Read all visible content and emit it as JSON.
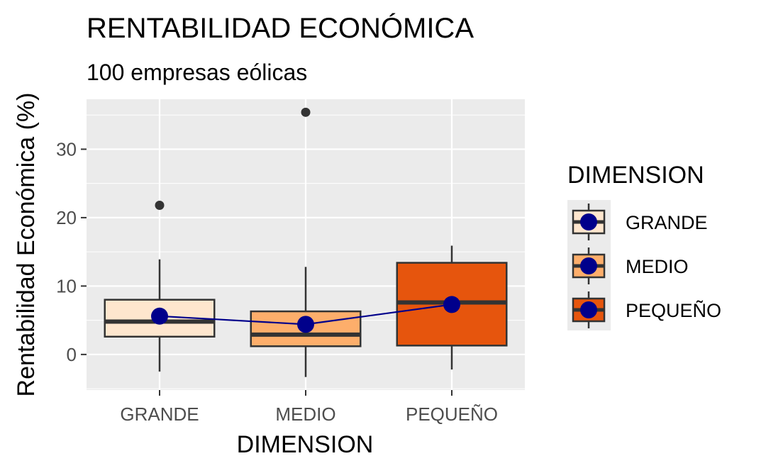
{
  "chart_data": {
    "type": "box",
    "title": "RENTABILIDAD ECONÓMICA",
    "subtitle": "100 empresas eólicas",
    "xlabel": "DIMENSION",
    "ylabel": "Rentabilidad Económica (%)",
    "ylim": [
      -5.2,
      37.3
    ],
    "yticks": [
      0,
      10,
      20,
      30
    ],
    "grid": true,
    "legend": {
      "title": "DIMENSION",
      "position": "right"
    },
    "categories": [
      "GRANDE",
      "MEDIO",
      "PEQUEÑO"
    ],
    "boxes": [
      {
        "category": "GRANDE",
        "lower_whisker": -2.5,
        "q1": 2.6,
        "median": 4.8,
        "q3": 8.0,
        "upper_whisker": 13.9,
        "outliers": [
          21.8
        ],
        "mean": 5.6,
        "fill": "#fee6ce"
      },
      {
        "category": "MEDIO",
        "lower_whisker": -3.3,
        "q1": 1.2,
        "median": 2.9,
        "q3": 6.3,
        "upper_whisker": 12.8,
        "outliers": [
          35.4
        ],
        "mean": 4.4,
        "fill": "#fdae6b"
      },
      {
        "category": "PEQUEÑO",
        "lower_whisker": -2.2,
        "q1": 1.3,
        "median": 7.6,
        "q3": 13.4,
        "upper_whisker": 15.9,
        "outliers": [],
        "mean": 7.3,
        "fill": "#e6550d"
      }
    ],
    "mean_line_color": "#00008b",
    "mean_point_color": "#00008b"
  }
}
